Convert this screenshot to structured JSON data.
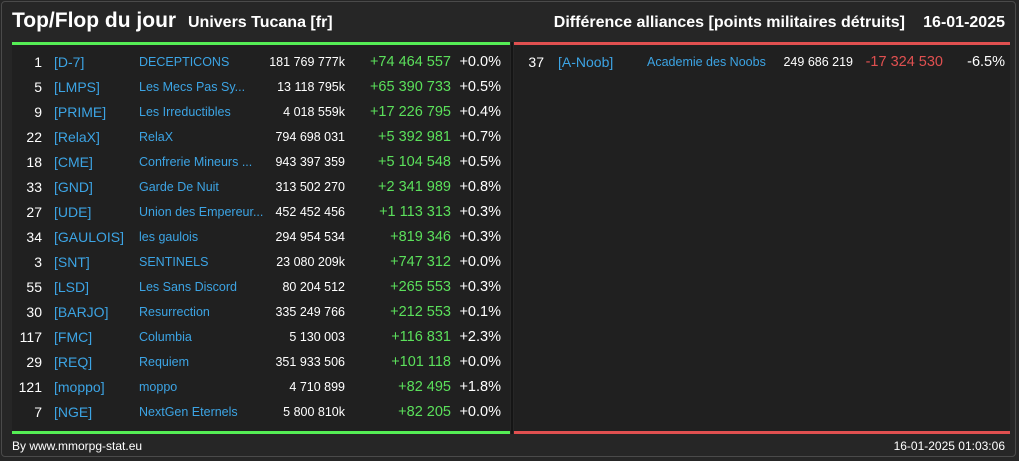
{
  "header": {
    "title": "Top/Flop du jour",
    "universe": "Univers Tucana [fr]",
    "subtitle": "Différence alliances [points militaires détruits]",
    "date": "16-01-2025"
  },
  "top": [
    {
      "rank": "1",
      "tag": "[D-7]",
      "name": "DECEPTICONS",
      "points": "181 769 777k",
      "diff": "+74 464 557",
      "pct": "+0.0%"
    },
    {
      "rank": "5",
      "tag": "[LMPS]",
      "name": "Les Mecs Pas Sy...",
      "points": "13 118 795k",
      "diff": "+65 390 733",
      "pct": "+0.5%"
    },
    {
      "rank": "9",
      "tag": "[PRIME]",
      "name": "Les Irreductibles",
      "points": "4 018 559k",
      "diff": "+17 226 795",
      "pct": "+0.4%"
    },
    {
      "rank": "22",
      "tag": "[RelaX]",
      "name": "RelaX",
      "points": "794 698 031",
      "diff": "+5 392 981",
      "pct": "+0.7%"
    },
    {
      "rank": "18",
      "tag": "[CME]",
      "name": "Confrerie Mineurs ...",
      "points": "943 397 359",
      "diff": "+5 104 548",
      "pct": "+0.5%"
    },
    {
      "rank": "33",
      "tag": "[GND]",
      "name": "Garde De Nuit",
      "points": "313 502 270",
      "diff": "+2 341 989",
      "pct": "+0.8%"
    },
    {
      "rank": "27",
      "tag": "[UDE]",
      "name": "Union des Empereur...",
      "points": "452 452 456",
      "diff": "+1 113 313",
      "pct": "+0.3%"
    },
    {
      "rank": "34",
      "tag": "[GAULOIS]",
      "name": "les gaulois",
      "points": "294 954 534",
      "diff": "+819 346",
      "pct": "+0.3%"
    },
    {
      "rank": "3",
      "tag": "[SNT]",
      "name": "SENTINELS",
      "points": "23 080 209k",
      "diff": "+747 312",
      "pct": "+0.0%"
    },
    {
      "rank": "55",
      "tag": "[LSD]",
      "name": "Les Sans Discord",
      "points": "80 204 512",
      "diff": "+265 553",
      "pct": "+0.3%"
    },
    {
      "rank": "30",
      "tag": "[BARJO]",
      "name": "Resurrection",
      "points": "335 249 766",
      "diff": "+212 553",
      "pct": "+0.1%"
    },
    {
      "rank": "117",
      "tag": "[FMC]",
      "name": "Columbia",
      "points": "5 130 003",
      "diff": "+116 831",
      "pct": "+2.3%"
    },
    {
      "rank": "29",
      "tag": "[REQ]",
      "name": "Requiem",
      "points": "351 933 506",
      "diff": "+101 118",
      "pct": "+0.0%"
    },
    {
      "rank": "121",
      "tag": "[moppo]",
      "name": "moppo",
      "points": "4 710 899",
      "diff": "+82 495",
      "pct": "+1.8%"
    },
    {
      "rank": "7",
      "tag": "[NGE]",
      "name": "NextGen Eternels",
      "points": "5 800 810k",
      "diff": "+82 205",
      "pct": "+0.0%"
    }
  ],
  "flop": [
    {
      "rank": "37",
      "tag": "[A-Noob]",
      "name": "Academie des Noobs",
      "points": "249 686 219",
      "diff": "-17 324 530",
      "pct": "-6.5%"
    }
  ],
  "footer": {
    "credit": "By www.mmorpg-stat.eu",
    "timestamp": "16-01-2025 01:03:06"
  },
  "colors": {
    "top_accent": "#55ee55",
    "flop_accent": "#e05050",
    "tag_link": "#3ca4e4"
  }
}
